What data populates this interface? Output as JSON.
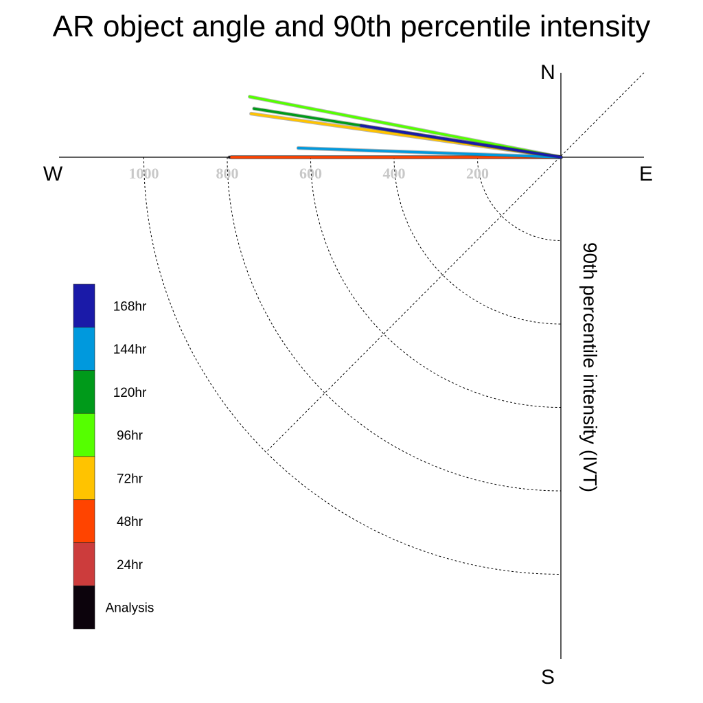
{
  "title": "AR object angle and 90th percentile intensity",
  "compass": {
    "north": "N",
    "south": "S",
    "east": "E",
    "west": "W"
  },
  "chart_data": {
    "type": "polar-vector",
    "title": "AR object angle and 90th percentile intensity",
    "radial_label": "90th percentile intensity (IVT)",
    "radial_ticks": [
      200,
      400,
      600,
      800,
      1000
    ],
    "radial_tick_labels": [
      "200",
      "400",
      "600",
      "800",
      "1000"
    ],
    "angle_reference": "degrees counter-clockwise from East",
    "series": [
      {
        "name": "168hr",
        "color": "#1a1aa8",
        "intensity": 485,
        "angle_deg": 171
      },
      {
        "name": "144hr",
        "color": "#0099dd",
        "intensity": 630,
        "angle_deg": 178
      },
      {
        "name": "120hr",
        "color": "#009a1a",
        "intensity": 745,
        "angle_deg": 171
      },
      {
        "name": "96hr",
        "color": "#55ff00",
        "intensity": 760,
        "angle_deg": 169
      },
      {
        "name": "72hr",
        "color": "#ffc300",
        "intensity": 750,
        "angle_deg": 172
      },
      {
        "name": "48hr",
        "color": "#ff4400",
        "intensity": 790,
        "angle_deg": 180
      },
      {
        "name": "24hr",
        "color": "#cc3c3c",
        "intensity": 790,
        "angle_deg": 180
      },
      {
        "name": "Analysis",
        "color": "#0c030c",
        "intensity": 795,
        "angle_deg": 180
      }
    ]
  }
}
